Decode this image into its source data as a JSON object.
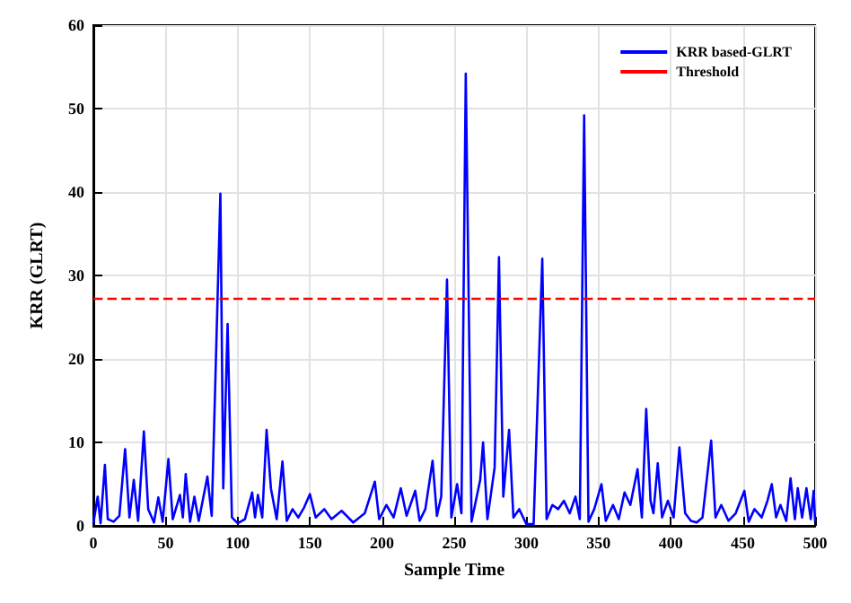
{
  "chart_data": {
    "type": "line",
    "xlabel": "Sample Time",
    "ylabel": "KRR (GLRT)",
    "xlim": [
      0,
      500
    ],
    "ylim": [
      0,
      60
    ],
    "xticks": [
      0,
      50,
      100,
      150,
      200,
      250,
      300,
      350,
      400,
      450,
      500
    ],
    "yticks": [
      0,
      10,
      20,
      30,
      40,
      50,
      60
    ],
    "grid": true,
    "legend": "top right",
    "marker": "none",
    "line_style": "solid",
    "series": [
      {
        "name": "KRR based-GLRT",
        "color": "#0000ff",
        "x": [
          0,
          3,
          5,
          8,
          10,
          14,
          18,
          22,
          25,
          28,
          31,
          35,
          38,
          42,
          45,
          48,
          52,
          55,
          60,
          62,
          64,
          67,
          70,
          73,
          79,
          82,
          88,
          90,
          93,
          96,
          100,
          105,
          110,
          112,
          114,
          117,
          120,
          123,
          127,
          131,
          134,
          138,
          142,
          146,
          150,
          154,
          160,
          165,
          172,
          180,
          188,
          195,
          198,
          203,
          208,
          213,
          217,
          223,
          226,
          230,
          235,
          238,
          241,
          245,
          248,
          252,
          255,
          258,
          262,
          265,
          268,
          270,
          273,
          278,
          281,
          284,
          288,
          291,
          295,
          300,
          305,
          311,
          314,
          318,
          322,
          326,
          330,
          334,
          337,
          340,
          343,
          347,
          352,
          355,
          360,
          364,
          368,
          372,
          377,
          380,
          383,
          386,
          388,
          391,
          394,
          398,
          402,
          406,
          410,
          414,
          418,
          422,
          428,
          431,
          435,
          440,
          445,
          451,
          454,
          458,
          463,
          467,
          470,
          473,
          476,
          480,
          483,
          486,
          488,
          491,
          494,
          497,
          499,
          500
        ],
        "values": [
          0.3,
          3.5,
          0.3,
          7.3,
          0.8,
          0.5,
          1.2,
          9.2,
          1.0,
          5.5,
          0.6,
          11.3,
          2.0,
          0.4,
          3.4,
          0.5,
          8.0,
          0.8,
          3.7,
          1.0,
          6.2,
          0.5,
          3.5,
          0.6,
          5.9,
          1.2,
          39.8,
          4.5,
          24.2,
          1.0,
          0.3,
          0.8,
          4.0,
          1.0,
          3.7,
          1.0,
          11.5,
          4.5,
          0.8,
          7.7,
          0.6,
          2.0,
          1.0,
          2.2,
          3.8,
          1.0,
          2.0,
          0.8,
          1.8,
          0.4,
          1.5,
          5.3,
          0.8,
          2.5,
          1.0,
          4.5,
          1.2,
          4.2,
          0.6,
          2.0,
          7.8,
          1.2,
          3.5,
          29.5,
          1.0,
          5.0,
          1.5,
          54.2,
          0.5,
          3.0,
          5.5,
          10.0,
          0.8,
          7.0,
          32.2,
          3.5,
          11.5,
          1.0,
          2.0,
          0.2,
          0.2,
          32.0,
          0.8,
          2.5,
          2.0,
          3.0,
          1.5,
          3.5,
          0.8,
          49.2,
          0.5,
          2.0,
          5.0,
          0.6,
          2.5,
          0.8,
          4.0,
          2.5,
          6.8,
          1.0,
          14.0,
          3.0,
          1.5,
          7.5,
          1.0,
          3.0,
          1.0,
          9.4,
          1.5,
          0.6,
          0.4,
          1.0,
          10.2,
          1.0,
          2.5,
          0.6,
          1.5,
          4.2,
          0.5,
          2.0,
          1.0,
          3.0,
          5.0,
          1.0,
          2.5,
          0.6,
          5.7,
          0.8,
          4.5,
          1.0,
          4.5,
          0.8,
          4.2,
          0.5
        ]
      },
      {
        "name": "Threshold",
        "color": "#ff0000",
        "line_style": "dashed",
        "x": [
          0,
          500
        ],
        "values": [
          27.2,
          27.2
        ]
      }
    ]
  }
}
